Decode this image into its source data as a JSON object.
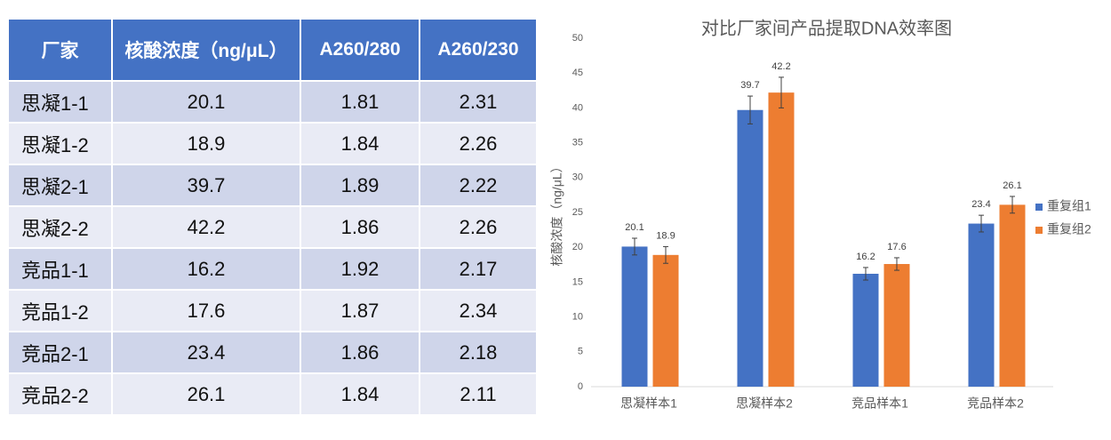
{
  "table": {
    "header": [
      "厂家",
      "核酸浓度（ng/μL）",
      "A260/280",
      "A260/230"
    ],
    "rows": [
      [
        "思凝1-1",
        20.1,
        1.81,
        2.31
      ],
      [
        "思凝1-2",
        18.9,
        1.84,
        2.26
      ],
      [
        "思凝2-1",
        39.7,
        1.89,
        2.22
      ],
      [
        "思凝2-2",
        42.2,
        1.86,
        2.26
      ],
      [
        "竞品1-1",
        16.2,
        1.92,
        2.17
      ],
      [
        "竞品1-2",
        17.6,
        1.87,
        2.34
      ],
      [
        "竞品2-1",
        23.4,
        1.86,
        2.18
      ],
      [
        "竞品2-2",
        26.1,
        1.84,
        2.11
      ]
    ]
  },
  "chart_data": {
    "type": "bar",
    "title": "对比厂家间产品提取DNA效率图",
    "y_label": "核酸浓度（ng/μL）",
    "categories": [
      "思凝样本1",
      "思凝样本2",
      "竞品样本1",
      "竞品样本2"
    ],
    "series": [
      {
        "name": "重复组1",
        "color": "#4472c4",
        "values": [
          20.1,
          39.7,
          16.2,
          23.4
        ],
        "errors": [
          1.2,
          2.0,
          0.9,
          1.2
        ]
      },
      {
        "name": "重复组2",
        "color": "#ed7d31",
        "values": [
          18.9,
          42.2,
          17.6,
          26.1
        ],
        "errors": [
          1.2,
          2.2,
          0.9,
          1.2
        ]
      }
    ],
    "ylim": [
      0,
      50
    ],
    "yticks": [
      0,
      5,
      10,
      15,
      20,
      25,
      30,
      35,
      40,
      45,
      50
    ],
    "grid": false,
    "legend": "right"
  }
}
